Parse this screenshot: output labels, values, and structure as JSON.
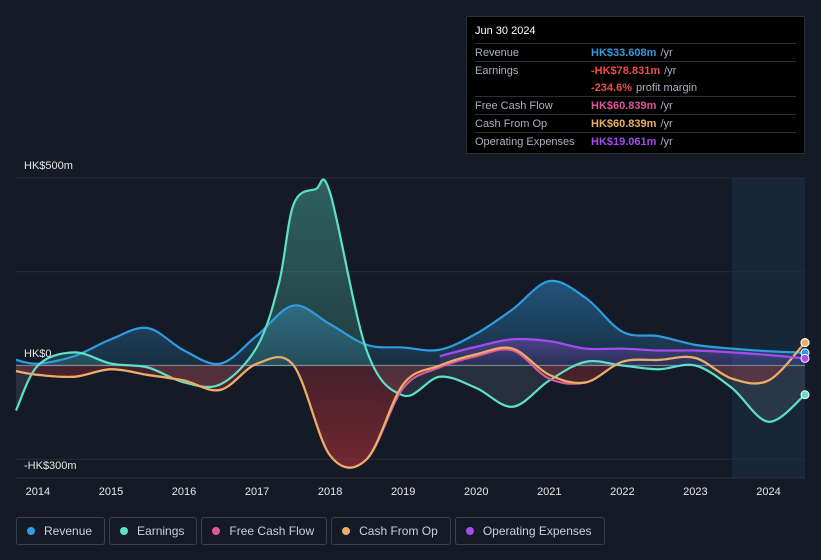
{
  "tooltip": {
    "date": "Jun 30 2024",
    "rows": [
      {
        "label": "Revenue",
        "value": "HK$33.608m",
        "unit": "/yr",
        "color": "#2f9be0"
      },
      {
        "label": "Earnings",
        "value": "-HK$78.831m",
        "unit": "/yr",
        "color": "#f24a4a"
      },
      {
        "label": "",
        "value": "-234.6%",
        "unit": "profit margin",
        "color": "#f24a4a"
      },
      {
        "label": "Free Cash Flow",
        "value": "HK$60.839m",
        "unit": "/yr",
        "color": "#e0559b"
      },
      {
        "label": "Cash From Op",
        "value": "HK$60.839m",
        "unit": "/yr",
        "color": "#e8b065"
      },
      {
        "label": "Operating Expenses",
        "value": "HK$19.061m",
        "unit": "/yr",
        "color": "#a64bf0"
      }
    ]
  },
  "legend": [
    {
      "label": "Revenue",
      "color": "#2f9be0"
    },
    {
      "label": "Earnings",
      "color": "#5ce1c8"
    },
    {
      "label": "Free Cash Flow",
      "color": "#e0559b"
    },
    {
      "label": "Cash From Op",
      "color": "#e8b065"
    },
    {
      "label": "Operating Expenses",
      "color": "#a64bf0"
    }
  ],
  "chart_data": {
    "type": "area",
    "y_top_label": "HK$500m",
    "y_zero_label": "HK$0",
    "y_bottom_label": "-HK$300m",
    "ylim": [
      -300,
      500
    ],
    "xlim": [
      2013.7,
      2024.5
    ],
    "forecast_start": 2023.5,
    "x_tick_labels": [
      "2014",
      "2015",
      "2016",
      "2017",
      "2018",
      "2019",
      "2020",
      "2021",
      "2022",
      "2023",
      "2024"
    ],
    "series": [
      {
        "name": "Revenue",
        "color": "#2f9be0",
        "x": [
          2013.7,
          2014.0,
          2014.5,
          2015.0,
          2015.5,
          2016.0,
          2016.5,
          2017.0,
          2017.5,
          2018.0,
          2018.5,
          2019.0,
          2019.5,
          2020.0,
          2020.5,
          2021.0,
          2021.5,
          2022.0,
          2022.5,
          2023.0,
          2023.5,
          2024.0,
          2024.5
        ],
        "y": [
          15,
          5,
          25,
          70,
          100,
          40,
          5,
          80,
          160,
          110,
          55,
          48,
          42,
          85,
          150,
          225,
          180,
          90,
          78,
          55,
          45,
          38,
          34
        ]
      },
      {
        "name": "Earnings",
        "color": "#5ce1c8",
        "x": [
          2013.7,
          2014.0,
          2014.5,
          2015.0,
          2015.5,
          2016.0,
          2016.5,
          2017.0,
          2017.3,
          2017.5,
          2017.8,
          2018.0,
          2018.5,
          2019.0,
          2019.5,
          2020.0,
          2020.5,
          2021.0,
          2021.5,
          2022.0,
          2022.5,
          2023.0,
          2023.5,
          2024.0,
          2024.5
        ],
        "y": [
          -120,
          0,
          35,
          5,
          -5,
          -45,
          -50,
          50,
          220,
          430,
          470,
          460,
          40,
          -80,
          -30,
          -60,
          -110,
          -40,
          10,
          0,
          -10,
          0,
          -60,
          -150,
          -78
        ]
      },
      {
        "name": "Free Cash Flow",
        "color": "#e0559b",
        "x": [
          2013.7,
          2014.0,
          2014.5,
          2015.0,
          2015.5,
          2016.0,
          2016.5,
          2017.0,
          2017.5,
          2018.0,
          2018.5,
          2019.0,
          2019.5,
          2020.0,
          2020.5,
          2021.0,
          2021.5,
          2022.0,
          2022.5,
          2023.0,
          2023.5,
          2024.0,
          2024.5
        ],
        "y": [
          -15,
          -25,
          -30,
          -10,
          -25,
          -40,
          -65,
          5,
          0,
          -240,
          -250,
          -60,
          -5,
          25,
          40,
          -35,
          -45,
          10,
          15,
          20,
          -35,
          -40,
          61
        ]
      },
      {
        "name": "Cash From Op",
        "color": "#e8b065",
        "x": [
          2013.7,
          2014.0,
          2014.5,
          2015.0,
          2015.5,
          2016.0,
          2016.5,
          2017.0,
          2017.5,
          2018.0,
          2018.5,
          2019.0,
          2019.5,
          2020.0,
          2020.5,
          2021.0,
          2021.5,
          2022.0,
          2022.5,
          2023.0,
          2023.5,
          2024.0,
          2024.5
        ],
        "y": [
          -15,
          -25,
          -30,
          -10,
          -25,
          -40,
          -65,
          5,
          0,
          -240,
          -250,
          -50,
          0,
          30,
          45,
          -25,
          -45,
          10,
          15,
          20,
          -35,
          -40,
          61
        ]
      },
      {
        "name": "Operating Expenses",
        "color": "#a64bf0",
        "x": [
          2019.5,
          2020.0,
          2020.5,
          2021.0,
          2021.5,
          2022.0,
          2022.5,
          2023.0,
          2023.5,
          2024.0,
          2024.5
        ],
        "y": [
          25,
          50,
          70,
          65,
          45,
          45,
          40,
          40,
          35,
          28,
          19
        ]
      }
    ]
  }
}
